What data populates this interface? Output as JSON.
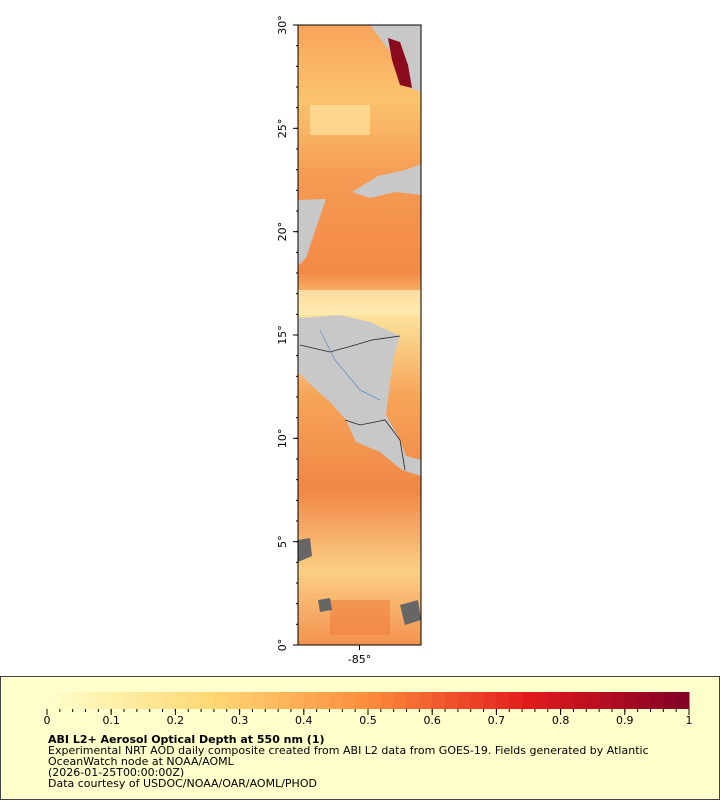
{
  "map": {
    "ylim": [
      0,
      30
    ],
    "yticks": [
      {
        "value": 0,
        "label": "0°"
      },
      {
        "value": 5,
        "label": "5°"
      },
      {
        "value": 10,
        "label": "10°"
      },
      {
        "value": 15,
        "label": "15°"
      },
      {
        "value": 20,
        "label": "20°"
      },
      {
        "value": 25,
        "label": "25°"
      },
      {
        "value": 30,
        "label": "30°"
      }
    ],
    "xlim": [
      -88,
      -82
    ],
    "xticks": [
      {
        "value": -85,
        "label": "-85°"
      }
    ]
  },
  "colorbar": {
    "lim": [
      0,
      1
    ],
    "ticks": [
      0,
      0.1,
      0.2,
      0.3,
      0.4,
      0.5,
      0.6,
      0.7,
      0.8,
      0.9,
      1
    ]
  },
  "legend": {
    "title": "ABI L2+ Aerosol Optical Depth at 550 nm (1)",
    "description_lines": [
      "Experimental NRT AOD daily composite created from ABI L2 data from GOES-19. Fields generated by Atlantic",
      "OceanWatch node at NOAA/AOML"
    ],
    "date": "(2026-01-25T00:00:00Z)",
    "credit": "Data courtesy of USDOC/NOAA/OAR/AOML/PHOD"
  }
}
